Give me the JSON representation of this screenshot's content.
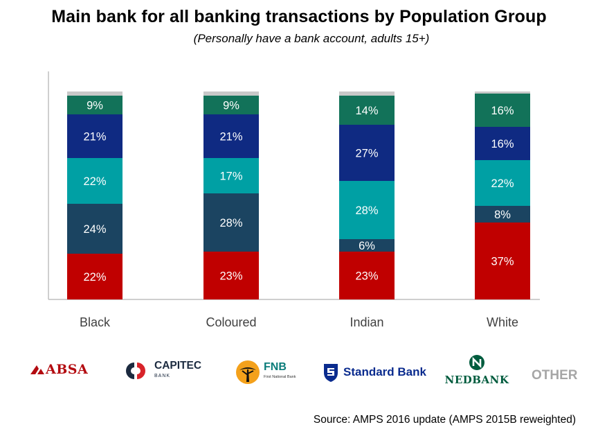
{
  "chart_data": {
    "type": "bar",
    "stacked": true,
    "title": "Main bank for all banking transactions by Population Group",
    "subtitle": "(Personally have a bank account, adults 15+)",
    "categories": [
      "Black",
      "Coloured",
      "Indian",
      "White"
    ],
    "series": [
      {
        "name": "ABSA",
        "color": "#c00000",
        "values": [
          22,
          23,
          23,
          37
        ],
        "labels": [
          "22%",
          "23%",
          "23%",
          "37%"
        ]
      },
      {
        "name": "CAPITEC",
        "color": "#1b4461",
        "values": [
          24,
          28,
          6,
          8
        ],
        "labels": [
          "24%",
          "28%",
          "6%",
          "8%"
        ]
      },
      {
        "name": "FNB",
        "color": "#00a0a4",
        "values": [
          22,
          17,
          28,
          22
        ],
        "labels": [
          "22%",
          "17%",
          "28%",
          "22%"
        ]
      },
      {
        "name": "Standard Bank",
        "color": "#0f2a82",
        "values": [
          21,
          21,
          27,
          16
        ],
        "labels": [
          "21%",
          "21%",
          "27%",
          "16%"
        ]
      },
      {
        "name": "NEDBANK",
        "color": "#127259",
        "values": [
          9,
          9,
          14,
          16
        ],
        "labels": [
          "9%",
          "9%",
          "14%",
          "16%"
        ]
      },
      {
        "name": "OTHER",
        "color": "#c8c8c8",
        "values": [
          2,
          2,
          2,
          1
        ],
        "labels": [
          "",
          "",
          "",
          ""
        ]
      }
    ],
    "ylim": [
      0,
      100
    ],
    "grid": false,
    "legend_placement": "bottom"
  },
  "legend": {
    "absa": "ABSA",
    "capitec": "CAPITEC",
    "capitec_sub": "BANK",
    "fnb": "FNB",
    "fnb_sub": "First National Bank",
    "standard_bank": "Standard Bank",
    "nedbank": "NEDBANK",
    "other": "OTHER"
  },
  "source": "Source: AMPS 2016 update (AMPS 2015B reweighted)"
}
